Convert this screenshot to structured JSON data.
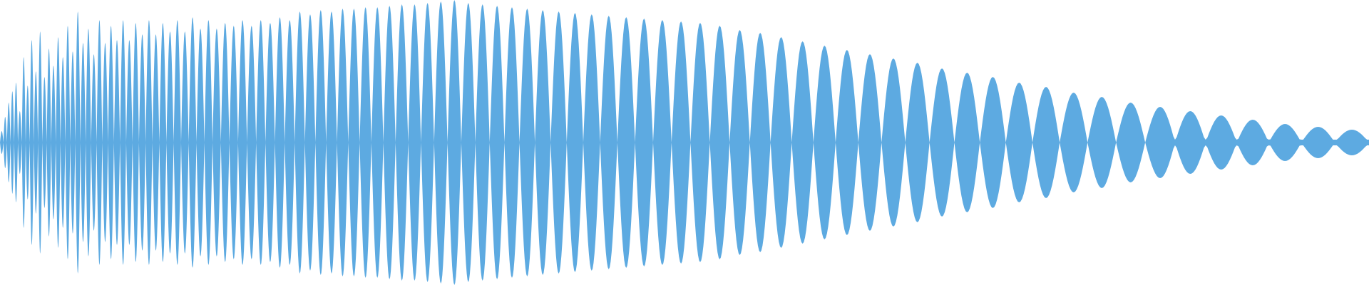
{
  "waveform": {
    "color": "#5DAAE1",
    "background": "#FFFFFF",
    "label": "",
    "lobe_peak_levels": [
      0.08,
      0.18,
      0.28,
      0.36,
      0.42,
      0.22,
      0.6,
      0.4,
      0.72,
      0.5,
      0.78,
      0.46,
      0.66,
      0.54,
      0.74,
      0.6,
      0.82,
      0.64,
      0.92,
      0.7,
      0.8,
      0.62,
      0.86,
      0.7,
      0.82,
      0.72,
      0.86,
      0.72,
      0.84,
      0.76,
      0.86,
      0.76,
      0.84,
      0.78,
      0.86,
      0.78,
      0.88,
      0.8,
      0.86,
      0.8,
      0.84,
      0.82,
      0.86,
      0.82,
      0.86,
      0.84,
      0.88,
      0.86,
      0.92,
      0.9,
      0.93,
      0.92,
      0.94,
      0.94,
      0.95,
      0.95,
      0.96,
      0.97,
      0.97,
      0.98,
      0.99,
      1.0,
      0.98,
      0.97,
      0.96,
      0.95,
      0.94,
      0.93,
      0.92,
      0.91,
      0.9,
      0.89,
      0.88,
      0.87,
      0.86,
      0.85,
      0.84,
      0.82,
      0.79,
      0.77,
      0.74,
      0.71,
      0.68,
      0.65,
      0.62,
      0.59,
      0.56,
      0.52,
      0.49,
      0.46,
      0.42,
      0.39,
      0.35,
      0.32,
      0.28,
      0.25,
      0.22,
      0.19,
      0.16,
      0.13,
      0.11,
      0.09
    ]
  }
}
